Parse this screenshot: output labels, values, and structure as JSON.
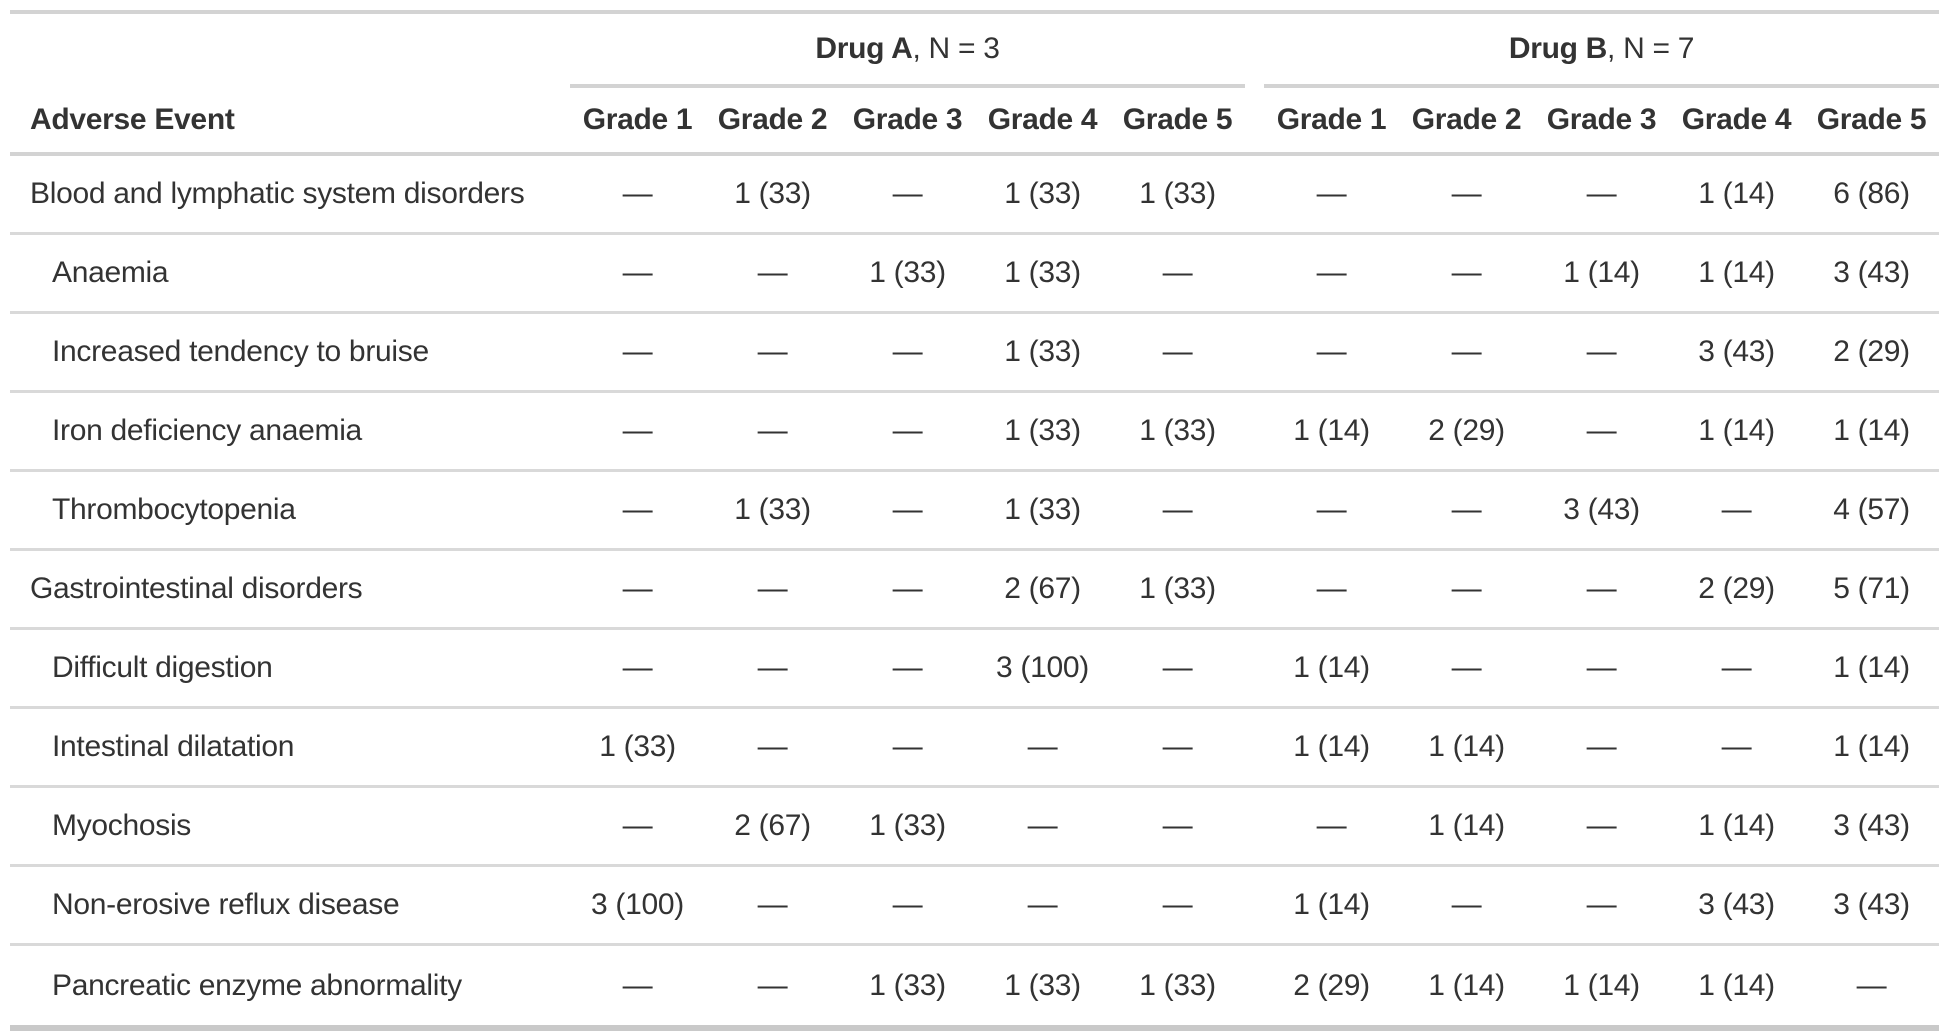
{
  "chart_data": {
    "type": "table",
    "row_label_header": "Adverse Event",
    "empty_cell_symbol": "—",
    "column_groups": [
      {
        "label": "Drug A",
        "suffix": ", N = 3",
        "columns": [
          "Grade 1",
          "Grade 2",
          "Grade 3",
          "Grade 4",
          "Grade 5"
        ]
      },
      {
        "label": "Drug B",
        "suffix": ", N = 7",
        "columns": [
          "Grade 1",
          "Grade 2",
          "Grade 3",
          "Grade 4",
          "Grade 5"
        ]
      }
    ],
    "rows": [
      {
        "label": "Blood and lymphatic system disorders",
        "indent": false,
        "drug_a": [
          "—",
          "1 (33)",
          "—",
          "1 (33)",
          "1 (33)"
        ],
        "drug_b": [
          "—",
          "—",
          "—",
          "1 (14)",
          "6 (86)"
        ]
      },
      {
        "label": "Anaemia",
        "indent": true,
        "drug_a": [
          "—",
          "—",
          "1 (33)",
          "1 (33)",
          "—"
        ],
        "drug_b": [
          "—",
          "—",
          "1 (14)",
          "1 (14)",
          "3 (43)"
        ]
      },
      {
        "label": "Increased tendency to bruise",
        "indent": true,
        "drug_a": [
          "—",
          "—",
          "—",
          "1 (33)",
          "—"
        ],
        "drug_b": [
          "—",
          "—",
          "—",
          "3 (43)",
          "2 (29)"
        ]
      },
      {
        "label": "Iron deficiency anaemia",
        "indent": true,
        "drug_a": [
          "—",
          "—",
          "—",
          "1 (33)",
          "1 (33)"
        ],
        "drug_b": [
          "1 (14)",
          "2 (29)",
          "—",
          "1 (14)",
          "1 (14)"
        ]
      },
      {
        "label": "Thrombocytopenia",
        "indent": true,
        "drug_a": [
          "—",
          "1 (33)",
          "—",
          "1 (33)",
          "—"
        ],
        "drug_b": [
          "—",
          "—",
          "3 (43)",
          "—",
          "4 (57)"
        ]
      },
      {
        "label": "Gastrointestinal disorders",
        "indent": false,
        "drug_a": [
          "—",
          "—",
          "—",
          "2 (67)",
          "1 (33)"
        ],
        "drug_b": [
          "—",
          "—",
          "—",
          "2 (29)",
          "5 (71)"
        ]
      },
      {
        "label": "Difficult digestion",
        "indent": true,
        "drug_a": [
          "—",
          "—",
          "—",
          "3 (100)",
          "—"
        ],
        "drug_b": [
          "1 (14)",
          "—",
          "—",
          "—",
          "1 (14)"
        ]
      },
      {
        "label": "Intestinal dilatation",
        "indent": true,
        "drug_a": [
          "1 (33)",
          "—",
          "—",
          "—",
          "—"
        ],
        "drug_b": [
          "1 (14)",
          "1 (14)",
          "—",
          "—",
          "1 (14)"
        ]
      },
      {
        "label": "Myochosis",
        "indent": true,
        "drug_a": [
          "—",
          "2 (67)",
          "1 (33)",
          "—",
          "—"
        ],
        "drug_b": [
          "—",
          "1 (14)",
          "—",
          "1 (14)",
          "3 (43)"
        ]
      },
      {
        "label": "Non-erosive reflux disease",
        "indent": true,
        "drug_a": [
          "3 (100)",
          "—",
          "—",
          "—",
          "—"
        ],
        "drug_b": [
          "1 (14)",
          "—",
          "—",
          "3 (43)",
          "3 (43)"
        ]
      },
      {
        "label": "Pancreatic enzyme abnormality",
        "indent": true,
        "drug_a": [
          "—",
          "—",
          "1 (33)",
          "1 (33)",
          "1 (33)"
        ],
        "drug_b": [
          "2 (29)",
          "1 (14)",
          "1 (14)",
          "1 (14)",
          "—"
        ]
      }
    ],
    "colors": {
      "text": "#333333",
      "header_border": "#d3d3d3",
      "row_border": "#d9d9d9",
      "table_bottom_border": "#c9c9c9",
      "background": "#ffffff"
    }
  }
}
